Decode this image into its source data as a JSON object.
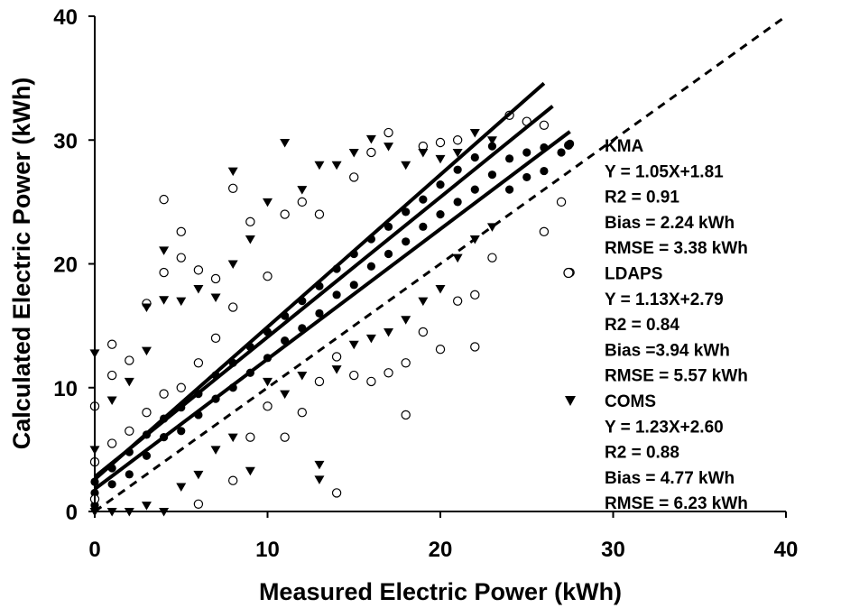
{
  "chart_data": {
    "type": "scatter",
    "title": "",
    "xlabel": "Measured Electric Power (kWh)",
    "ylabel": "Calculated Electric Power (kWh)",
    "xlim": [
      0,
      40
    ],
    "ylim": [
      0,
      40
    ],
    "xticks": [
      "0",
      "10",
      "20",
      "30",
      "40"
    ],
    "yticks": [
      "0",
      "10",
      "20",
      "30",
      "40"
    ],
    "grid": false,
    "legend_position": "right",
    "one_to_one_line": {
      "style": "dashed",
      "from": [
        0,
        0
      ],
      "to": [
        40,
        40
      ]
    },
    "series": [
      {
        "name": "KMA",
        "marker": "filled-circle",
        "fit": {
          "slope": 1.05,
          "intercept": 1.81,
          "x_range": [
            0,
            27.5
          ]
        },
        "stats": [
          "KMA",
          "Y = 1.05X+1.81",
          "R2 = 0.91",
          "Bias = 2.24 kWh",
          "RMSE = 3.38 kWh"
        ],
        "points": [
          [
            0,
            0.5
          ],
          [
            0,
            1.5
          ],
          [
            0,
            2.4
          ],
          [
            1,
            2.2
          ],
          [
            1,
            3.5
          ],
          [
            2,
            3.0
          ],
          [
            2,
            4.8
          ],
          [
            3,
            4.5
          ],
          [
            3,
            6.2
          ],
          [
            4,
            6.0
          ],
          [
            4,
            7.5
          ],
          [
            5,
            6.5
          ],
          [
            5,
            8.4
          ],
          [
            6,
            7.8
          ],
          [
            6,
            9.5
          ],
          [
            7,
            9.1
          ],
          [
            7,
            11.0
          ],
          [
            8,
            10.0
          ],
          [
            8,
            12.0
          ],
          [
            9,
            11.2
          ],
          [
            9,
            13.3
          ],
          [
            10,
            12.4
          ],
          [
            10,
            14.5
          ],
          [
            11,
            13.8
          ],
          [
            11,
            15.8
          ],
          [
            12,
            14.8
          ],
          [
            12,
            17.0
          ],
          [
            13,
            16.0
          ],
          [
            13,
            18.2
          ],
          [
            14,
            17.5
          ],
          [
            14,
            19.6
          ],
          [
            15,
            18.3
          ],
          [
            15,
            20.8
          ],
          [
            16,
            19.8
          ],
          [
            16,
            22.0
          ],
          [
            17,
            20.8
          ],
          [
            17,
            23.0
          ],
          [
            18,
            21.8
          ],
          [
            18,
            24.2
          ],
          [
            19,
            23.0
          ],
          [
            19,
            25.2
          ],
          [
            20,
            24.0
          ],
          [
            20,
            26.4
          ],
          [
            21,
            25.0
          ],
          [
            21,
            27.6
          ],
          [
            22,
            26.0
          ],
          [
            22,
            28.6
          ],
          [
            23,
            27.2
          ],
          [
            23,
            29.5
          ],
          [
            24,
            26.0
          ],
          [
            24,
            28.5
          ],
          [
            25,
            27.0
          ],
          [
            25,
            29.0
          ],
          [
            26,
            27.5
          ],
          [
            26,
            29.4
          ],
          [
            27,
            29.0
          ],
          [
            27.5,
            29.7
          ]
        ]
      },
      {
        "name": "LDAPS",
        "marker": "open-circle",
        "fit": {
          "slope": 1.13,
          "intercept": 2.79,
          "x_range": [
            0,
            26.5
          ]
        },
        "stats": [
          "LDAPS",
          "Y = 1.13X+2.79",
          "R2 = 0.84",
          "Bias =3.94 kWh",
          "RMSE = 5.57 kWh"
        ],
        "points": [
          [
            0,
            1.0
          ],
          [
            0,
            4.0
          ],
          [
            0,
            8.5
          ],
          [
            1,
            5.5
          ],
          [
            1,
            11.0
          ],
          [
            1,
            13.5
          ],
          [
            2,
            6.5
          ],
          [
            2,
            12.2
          ],
          [
            3,
            8.0
          ],
          [
            3,
            16.8
          ],
          [
            4,
            9.5
          ],
          [
            4,
            19.3
          ],
          [
            4,
            25.2
          ],
          [
            5,
            10.0
          ],
          [
            5,
            20.5
          ],
          [
            5,
            22.6
          ],
          [
            6,
            0.6
          ],
          [
            6,
            12.0
          ],
          [
            6,
            19.5
          ],
          [
            7,
            14.0
          ],
          [
            7,
            18.8
          ],
          [
            8,
            2.5
          ],
          [
            8,
            16.5
          ],
          [
            8,
            26.1
          ],
          [
            9,
            6.0
          ],
          [
            9,
            23.4
          ],
          [
            10,
            8.5
          ],
          [
            10,
            19.0
          ],
          [
            11,
            6.0
          ],
          [
            11,
            24.0
          ],
          [
            12,
            8.0
          ],
          [
            12,
            25.0
          ],
          [
            13,
            10.5
          ],
          [
            13,
            24.0
          ],
          [
            14,
            1.5
          ],
          [
            14,
            12.5
          ],
          [
            15,
            11.0
          ],
          [
            15,
            27.0
          ],
          [
            16,
            10.5
          ],
          [
            16,
            29.0
          ],
          [
            17,
            11.2
          ],
          [
            17,
            30.6
          ],
          [
            18,
            7.8
          ],
          [
            18,
            12.0
          ],
          [
            19,
            14.5
          ],
          [
            19,
            29.5
          ],
          [
            20,
            13.1
          ],
          [
            20,
            29.8
          ],
          [
            21,
            17.0
          ],
          [
            21,
            30.0
          ],
          [
            22,
            13.3
          ],
          [
            22,
            17.5
          ],
          [
            23,
            20.5
          ],
          [
            24,
            32.0
          ],
          [
            25,
            31.5
          ],
          [
            26,
            22.6
          ],
          [
            26,
            31.2
          ],
          [
            27,
            25.0
          ],
          [
            27.5,
            19.3
          ]
        ]
      },
      {
        "name": "COMS",
        "marker": "filled-triangle-down",
        "fit": {
          "slope": 1.23,
          "intercept": 2.6,
          "x_range": [
            0,
            26
          ]
        },
        "stats": [
          "COMS",
          "Y = 1.23X+2.60",
          "R2 = 0.88",
          "Bias = 4.77 kWh",
          "RMSE = 6.23 kWh"
        ],
        "points": [
          [
            0,
            0.0
          ],
          [
            0,
            5.0
          ],
          [
            0,
            12.8
          ],
          [
            1,
            0.0
          ],
          [
            1,
            9.0
          ],
          [
            2,
            0.0
          ],
          [
            2,
            10.5
          ],
          [
            3,
            0.5
          ],
          [
            3,
            13.0
          ],
          [
            3,
            16.5
          ],
          [
            4,
            0.0
          ],
          [
            4,
            17.1
          ],
          [
            4,
            21.1
          ],
          [
            5,
            2.0
          ],
          [
            5,
            17.0
          ],
          [
            6,
            3.0
          ],
          [
            6,
            18.0
          ],
          [
            7,
            5.0
          ],
          [
            7,
            17.3
          ],
          [
            8,
            6.0
          ],
          [
            8,
            20.0
          ],
          [
            8,
            27.5
          ],
          [
            9,
            3.3
          ],
          [
            9,
            22.0
          ],
          [
            10,
            10.5
          ],
          [
            10,
            25.0
          ],
          [
            11,
            9.5
          ],
          [
            11,
            29.8
          ],
          [
            12,
            11.0
          ],
          [
            12,
            26.0
          ],
          [
            13,
            2.6
          ],
          [
            13,
            3.8
          ],
          [
            13,
            28.0
          ],
          [
            14,
            11.5
          ],
          [
            14,
            28.0
          ],
          [
            15,
            13.5
          ],
          [
            15,
            29.0
          ],
          [
            16,
            14.0
          ],
          [
            16,
            30.1
          ],
          [
            17,
            14.5
          ],
          [
            17,
            29.5
          ],
          [
            18,
            15.5
          ],
          [
            18,
            28.0
          ],
          [
            19,
            17.0
          ],
          [
            19,
            29.0
          ],
          [
            20,
            18.0
          ],
          [
            20,
            28.5
          ],
          [
            21,
            20.5
          ],
          [
            21,
            29.0
          ],
          [
            22,
            22.0
          ],
          [
            22,
            30.6
          ],
          [
            23,
            23.0
          ],
          [
            23,
            30.0
          ]
        ]
      }
    ]
  }
}
